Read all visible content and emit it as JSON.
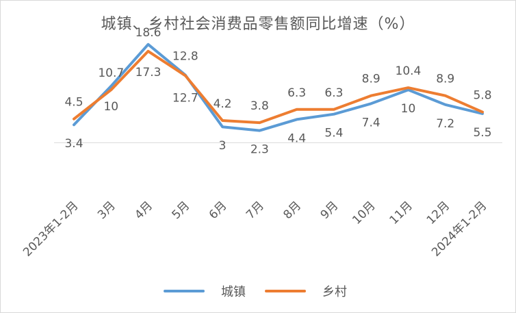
{
  "chart_data": {
    "type": "line",
    "title": "城镇、乡村社会消费品零售额同比增速（%）",
    "categories": [
      "2023年1-2月",
      "3月",
      "4月",
      "5月",
      "6月",
      "7月",
      "8月",
      "9月",
      "10月",
      "11月",
      "12月",
      "2024年1-2月"
    ],
    "series": [
      {
        "name": "城镇",
        "color": "#5b9bd5",
        "values": [
          3.4,
          10.7,
          18.6,
          12.8,
          3,
          2.3,
          4.4,
          5.4,
          7.4,
          10,
          7.2,
          5.5
        ]
      },
      {
        "name": "乡村",
        "color": "#ed7d31",
        "values": [
          4.5,
          10,
          17.3,
          12.7,
          4.2,
          3.8,
          6.3,
          6.3,
          8.9,
          10.4,
          8.9,
          5.8
        ]
      }
    ],
    "xlabel": "",
    "ylabel": "",
    "ylim": [
      -5,
      20
    ],
    "grid": false,
    "legend_position": "bottom"
  }
}
